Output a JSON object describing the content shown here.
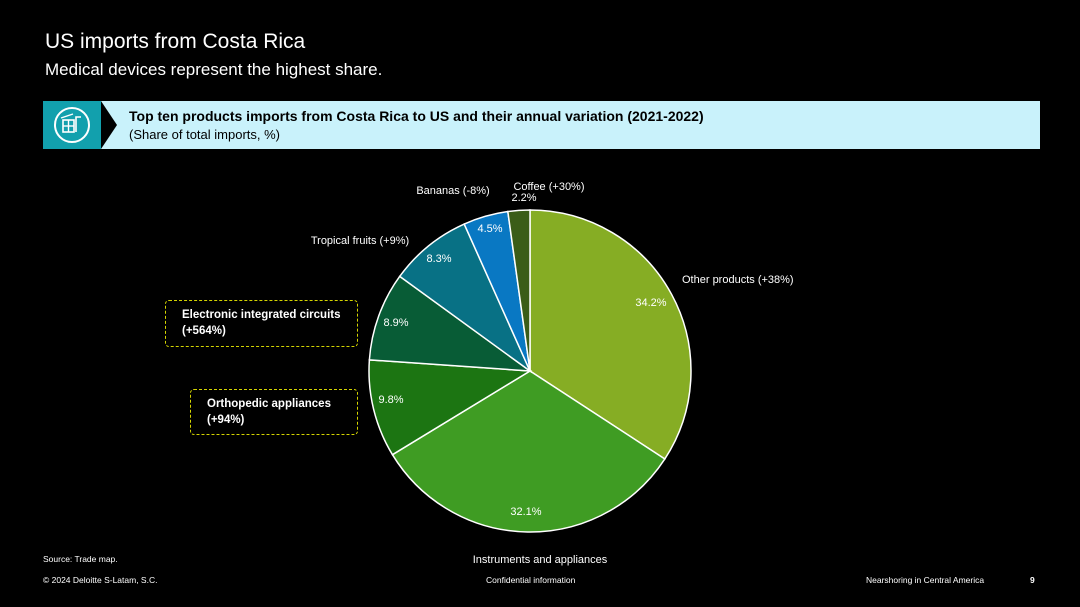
{
  "header": {
    "title": "US imports from Costa Rica",
    "subtitle": "Medical devices represent the highest share."
  },
  "banner": {
    "icon": "import-crate-icon",
    "title": "Top ten products imports from Costa Rica to US and their annual variation (2021-2022)",
    "subtitle": "(Share of total imports, %)"
  },
  "callouts": {
    "electronic_line1": "Electronic integrated circuits",
    "electronic_line2": "(+564%)",
    "orthopedic_line1": "Orthopedic appliances",
    "orthopedic_line2": "(+94%)"
  },
  "chart_data": {
    "type": "pie",
    "start": "12 o'clock",
    "direction": "clockwise",
    "slices": [
      {
        "category": "Other products  (+38%)",
        "value_label": "34.2%",
        "value": 34.2,
        "color": "#86ad24"
      },
      {
        "category": "Instruments and appliances",
        "value_label": "32.1%",
        "value": 32.1,
        "color": "#3f9c23"
      },
      {
        "category": "Orthopedic appliances (+94%)",
        "value_label": "9.8%",
        "value": 9.8,
        "color": "#1c7512"
      },
      {
        "category": "Electronic integrated circuits (+564%)",
        "value_label": "8.9%",
        "value": 8.9,
        "color": "#085c36"
      },
      {
        "category": "Tropical fruits (+9%)",
        "value_label": "8.3%",
        "value": 8.3,
        "color": "#087185"
      },
      {
        "category": "Bananas (-8%)",
        "value_label": "4.5%",
        "value": 4.5,
        "color": "#0978c3"
      },
      {
        "category": "Coffee (+30%)",
        "value_label": "2.2%",
        "value": 2.2,
        "color": "#3b5d18"
      }
    ]
  },
  "footer": {
    "source": "Source: Trade map.",
    "copyright": "© 2024 Deloitte S-Latam, S.C.",
    "confidential": "Confidential information",
    "report": "Nearshoring in Central America",
    "page": "9"
  }
}
